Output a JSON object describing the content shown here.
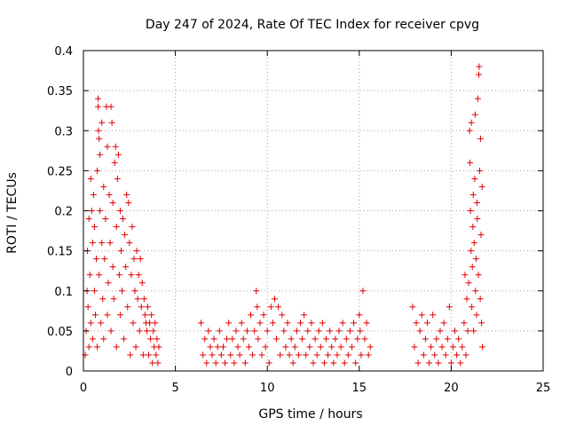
{
  "chart_data": {
    "type": "scatter",
    "title": "Day 247 of 2024, Rate Of TEC Index for receiver cpvg",
    "xlabel": "GPS time / hours",
    "ylabel": "ROTI / TECUs",
    "xlim": [
      0,
      25
    ],
    "ylim": [
      0,
      0.4
    ],
    "xticks": [
      0,
      5,
      10,
      15,
      20,
      25
    ],
    "xtick_labels": [
      "0",
      "5",
      "10",
      "15",
      "20",
      "25"
    ],
    "yticks": [
      0,
      0.05,
      0.1,
      0.15,
      0.2,
      0.25,
      0.3,
      0.35,
      0.4
    ],
    "ytick_labels": [
      "0",
      "0.05",
      "0.1",
      "0.15",
      "0.2",
      "0.25",
      "0.3",
      "0.35",
      "0.4"
    ],
    "grid": true,
    "marker": "+",
    "color": "#e00000",
    "series": [
      {
        "name": "ROTI",
        "points": [
          [
            0.1,
            0.02
          ],
          [
            0.15,
            0.05
          ],
          [
            0.2,
            0.1
          ],
          [
            0.22,
            0.15
          ],
          [
            0.25,
            0.08
          ],
          [
            0.3,
            0.03
          ],
          [
            0.3,
            0.19
          ],
          [
            0.35,
            0.12
          ],
          [
            0.4,
            0.24
          ],
          [
            0.4,
            0.06
          ],
          [
            0.45,
            0.2
          ],
          [
            0.5,
            0.16
          ],
          [
            0.5,
            0.04
          ],
          [
            0.55,
            0.22
          ],
          [
            0.6,
            0.1
          ],
          [
            0.6,
            0.18
          ],
          [
            0.65,
            0.07
          ],
          [
            0.7,
            0.14
          ],
          [
            0.75,
            0.25
          ],
          [
            0.75,
            0.03
          ],
          [
            0.8,
            0.34
          ],
          [
            0.8,
            0.33
          ],
          [
            0.82,
            0.3
          ],
          [
            0.85,
            0.29
          ],
          [
            0.85,
            0.12
          ],
          [
            0.9,
            0.27
          ],
          [
            0.9,
            0.2
          ],
          [
            0.95,
            0.06
          ],
          [
            1.0,
            0.31
          ],
          [
            1.0,
            0.16
          ],
          [
            1.05,
            0.09
          ],
          [
            1.1,
            0.23
          ],
          [
            1.1,
            0.04
          ],
          [
            1.15,
            0.14
          ],
          [
            1.2,
            0.19
          ],
          [
            1.25,
            0.33
          ],
          [
            1.3,
            0.28
          ],
          [
            1.3,
            0.07
          ],
          [
            1.35,
            0.11
          ],
          [
            1.4,
            0.22
          ],
          [
            1.45,
            0.16
          ],
          [
            1.5,
            0.33
          ],
          [
            1.5,
            0.05
          ],
          [
            1.55,
            0.31
          ],
          [
            1.6,
            0.21
          ],
          [
            1.6,
            0.13
          ],
          [
            1.65,
            0.09
          ],
          [
            1.7,
            0.26
          ],
          [
            1.75,
            0.28
          ],
          [
            1.8,
            0.18
          ],
          [
            1.8,
            0.03
          ],
          [
            1.85,
            0.24
          ],
          [
            1.9,
            0.27
          ],
          [
            1.95,
            0.12
          ],
          [
            2.0,
            0.2
          ],
          [
            2.0,
            0.07
          ],
          [
            2.05,
            0.15
          ],
          [
            2.1,
            0.1
          ],
          [
            2.15,
            0.19
          ],
          [
            2.2,
            0.04
          ],
          [
            2.25,
            0.17
          ],
          [
            2.3,
            0.13
          ],
          [
            2.35,
            0.22
          ],
          [
            2.4,
            0.08
          ],
          [
            2.45,
            0.21
          ],
          [
            2.5,
            0.16
          ],
          [
            2.55,
            0.02
          ],
          [
            2.6,
            0.12
          ],
          [
            2.65,
            0.18
          ],
          [
            2.7,
            0.06
          ],
          [
            2.75,
            0.14
          ],
          [
            2.8,
            0.1
          ],
          [
            2.85,
            0.03
          ],
          [
            2.9,
            0.15
          ],
          [
            2.95,
            0.09
          ],
          [
            3.0,
            0.12
          ],
          [
            3.05,
            0.05
          ],
          [
            3.1,
            0.14
          ],
          [
            3.15,
            0.08
          ],
          [
            3.2,
            0.11
          ],
          [
            3.25,
            0.02
          ],
          [
            3.3,
            0.09
          ],
          [
            3.35,
            0.07
          ],
          [
            3.4,
            0.06
          ],
          [
            3.45,
            0.05
          ],
          [
            3.5,
            0.08
          ],
          [
            3.55,
            0.02
          ],
          [
            3.6,
            0.06
          ],
          [
            3.65,
            0.04
          ],
          [
            3.7,
            0.07
          ],
          [
            3.75,
            0.01
          ],
          [
            3.8,
            0.05
          ],
          [
            3.85,
            0.03
          ],
          [
            3.9,
            0.06
          ],
          [
            3.95,
            0.02
          ],
          [
            4.0,
            0.04
          ],
          [
            4.05,
            0.01
          ],
          [
            4.1,
            0.03
          ],
          [
            6.4,
            0.06
          ],
          [
            6.5,
            0.02
          ],
          [
            6.6,
            0.04
          ],
          [
            6.7,
            0.01
          ],
          [
            6.8,
            0.05
          ],
          [
            6.9,
            0.03
          ],
          [
            7.0,
            0.02
          ],
          [
            7.1,
            0.04
          ],
          [
            7.2,
            0.01
          ],
          [
            7.3,
            0.03
          ],
          [
            7.4,
            0.05
          ],
          [
            7.5,
            0.02
          ],
          [
            7.6,
            0.03
          ],
          [
            7.7,
            0.01
          ],
          [
            7.8,
            0.04
          ],
          [
            7.9,
            0.06
          ],
          [
            8.0,
            0.02
          ],
          [
            8.1,
            0.04
          ],
          [
            8.2,
            0.01
          ],
          [
            8.3,
            0.05
          ],
          [
            8.4,
            0.03
          ],
          [
            8.5,
            0.02
          ],
          [
            8.6,
            0.06
          ],
          [
            8.7,
            0.04
          ],
          [
            8.8,
            0.01
          ],
          [
            8.9,
            0.05
          ],
          [
            9.0,
            0.03
          ],
          [
            9.1,
            0.07
          ],
          [
            9.2,
            0.02
          ],
          [
            9.3,
            0.05
          ],
          [
            9.4,
            0.1
          ],
          [
            9.45,
            0.08
          ],
          [
            9.5,
            0.04
          ],
          [
            9.6,
            0.06
          ],
          [
            9.7,
            0.02
          ],
          [
            9.8,
            0.07
          ],
          [
            9.9,
            0.03
          ],
          [
            10.0,
            0.05
          ],
          [
            10.1,
            0.01
          ],
          [
            10.2,
            0.08
          ],
          [
            10.3,
            0.06
          ],
          [
            10.4,
            0.09
          ],
          [
            10.5,
            0.04
          ],
          [
            10.6,
            0.08
          ],
          [
            10.7,
            0.02
          ],
          [
            10.8,
            0.07
          ],
          [
            10.9,
            0.05
          ],
          [
            11.0,
            0.03
          ],
          [
            11.1,
            0.06
          ],
          [
            11.2,
            0.02
          ],
          [
            11.3,
            0.04
          ],
          [
            11.4,
            0.01
          ],
          [
            11.5,
            0.03
          ],
          [
            11.6,
            0.05
          ],
          [
            11.7,
            0.02
          ],
          [
            11.8,
            0.06
          ],
          [
            11.9,
            0.04
          ],
          [
            12.0,
            0.07
          ],
          [
            12.1,
            0.02
          ],
          [
            12.2,
            0.05
          ],
          [
            12.3,
            0.03
          ],
          [
            12.4,
            0.06
          ],
          [
            12.5,
            0.01
          ],
          [
            12.6,
            0.04
          ],
          [
            12.7,
            0.02
          ],
          [
            12.8,
            0.05
          ],
          [
            12.9,
            0.03
          ],
          [
            13.0,
            0.06
          ],
          [
            13.1,
            0.01
          ],
          [
            13.2,
            0.04
          ],
          [
            13.3,
            0.02
          ],
          [
            13.4,
            0.05
          ],
          [
            13.5,
            0.03
          ],
          [
            13.6,
            0.01
          ],
          [
            13.7,
            0.04
          ],
          [
            13.8,
            0.02
          ],
          [
            13.9,
            0.05
          ],
          [
            14.0,
            0.03
          ],
          [
            14.1,
            0.06
          ],
          [
            14.2,
            0.01
          ],
          [
            14.3,
            0.04
          ],
          [
            14.4,
            0.02
          ],
          [
            14.5,
            0.05
          ],
          [
            14.6,
            0.03
          ],
          [
            14.7,
            0.06
          ],
          [
            14.8,
            0.01
          ],
          [
            14.9,
            0.04
          ],
          [
            15.0,
            0.07
          ],
          [
            15.05,
            0.05
          ],
          [
            15.1,
            0.02
          ],
          [
            15.2,
            0.1
          ],
          [
            15.3,
            0.04
          ],
          [
            15.4,
            0.06
          ],
          [
            15.5,
            0.02
          ],
          [
            15.6,
            0.03
          ],
          [
            17.9,
            0.08
          ],
          [
            18.0,
            0.03
          ],
          [
            18.1,
            0.06
          ],
          [
            18.2,
            0.01
          ],
          [
            18.3,
            0.05
          ],
          [
            18.4,
            0.07
          ],
          [
            18.5,
            0.02
          ],
          [
            18.6,
            0.04
          ],
          [
            18.7,
            0.06
          ],
          [
            18.8,
            0.01
          ],
          [
            18.9,
            0.03
          ],
          [
            19.0,
            0.07
          ],
          [
            19.1,
            0.02
          ],
          [
            19.2,
            0.04
          ],
          [
            19.3,
            0.01
          ],
          [
            19.4,
            0.05
          ],
          [
            19.5,
            0.03
          ],
          [
            19.6,
            0.06
          ],
          [
            19.7,
            0.02
          ],
          [
            19.8,
            0.04
          ],
          [
            19.9,
            0.08
          ],
          [
            20.0,
            0.01
          ],
          [
            20.1,
            0.03
          ],
          [
            20.2,
            0.05
          ],
          [
            20.3,
            0.02
          ],
          [
            20.4,
            0.04
          ],
          [
            20.5,
            0.01
          ],
          [
            20.6,
            0.03
          ],
          [
            20.7,
            0.06
          ],
          [
            20.75,
            0.12
          ],
          [
            20.8,
            0.02
          ],
          [
            20.85,
            0.09
          ],
          [
            20.9,
            0.05
          ],
          [
            20.95,
            0.11
          ],
          [
            21.0,
            0.3
          ],
          [
            21.02,
            0.26
          ],
          [
            21.05,
            0.2
          ],
          [
            21.08,
            0.15
          ],
          [
            21.1,
            0.31
          ],
          [
            21.12,
            0.08
          ],
          [
            21.15,
            0.13
          ],
          [
            21.18,
            0.18
          ],
          [
            21.2,
            0.22
          ],
          [
            21.22,
            0.05
          ],
          [
            21.25,
            0.16
          ],
          [
            21.28,
            0.24
          ],
          [
            21.3,
            0.32
          ],
          [
            21.32,
            0.1
          ],
          [
            21.35,
            0.14
          ],
          [
            21.38,
            0.07
          ],
          [
            21.4,
            0.21
          ],
          [
            21.42,
            0.19
          ],
          [
            21.45,
            0.34
          ],
          [
            21.48,
            0.12
          ],
          [
            21.5,
            0.37
          ],
          [
            21.52,
            0.38
          ],
          [
            21.55,
            0.25
          ],
          [
            21.58,
            0.09
          ],
          [
            21.6,
            0.29
          ],
          [
            21.62,
            0.17
          ],
          [
            21.65,
            0.06
          ],
          [
            21.68,
            0.23
          ],
          [
            21.7,
            0.03
          ]
        ]
      }
    ]
  }
}
